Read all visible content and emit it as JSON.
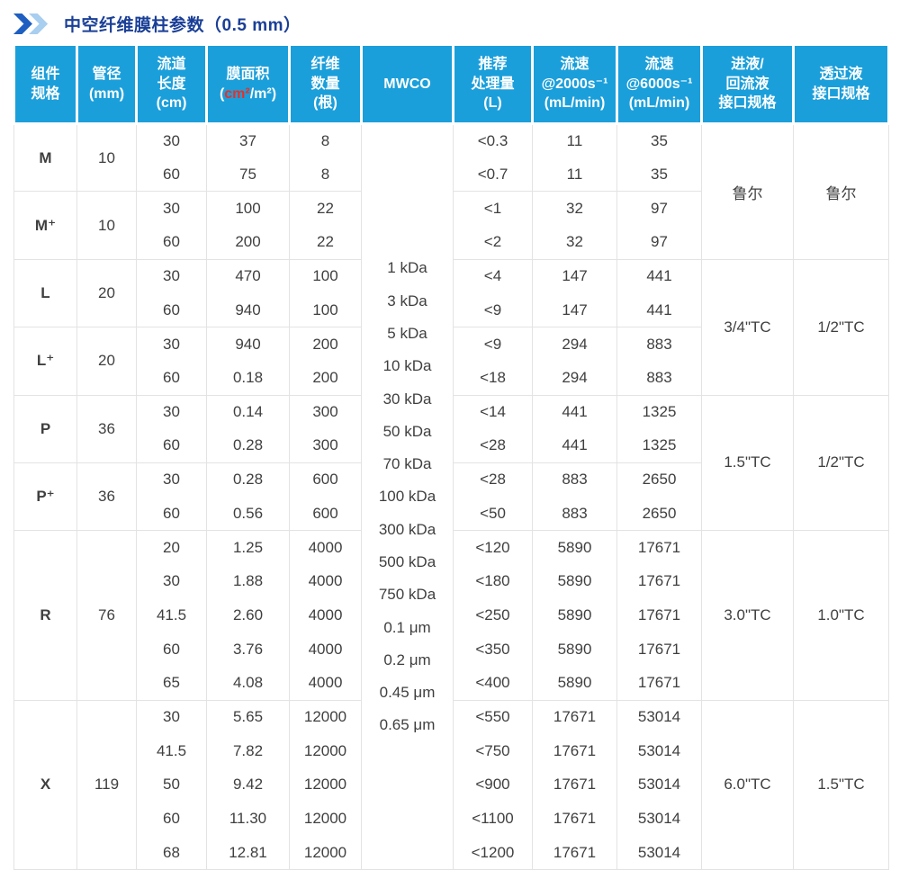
{
  "title": {
    "icon": "double-chevron-right",
    "text": "中空纤维膜柱参数（0.5 mm）"
  },
  "colors": {
    "header_bg": "#1b9fdb",
    "component_blue": "#1aa0e3",
    "highlight_red": "#e60012",
    "title_blue": "#1a3f97",
    "chevron_dark": "#1e5fc1",
    "chevron_light": "#a8cef0"
  },
  "table": {
    "headers": [
      "组件\n规格",
      "管径\n(mm)",
      "流道\n长度\n(cm)",
      {
        "title": "膜面积",
        "unit_pre": "(",
        "unit_red": "cm²",
        "unit_post": "/m²)"
      },
      "纤维\n数量\n(根)",
      "MWCO",
      "推荐\n处理量\n(L)",
      "流速\n@2000s⁻¹\n(mL/min)",
      "流速\n@6000s⁻¹\n(mL/min)",
      "进液/\n回流液\n接口规格",
      "透过液\n接口规格"
    ],
    "mwco": {
      "values": [
        "1 kDa",
        "3 kDa",
        "5 kDa",
        "10 kDa",
        "30 kDa",
        "50 kDa",
        "70 kDa",
        "100 kDa",
        "300 kDa",
        "500 kDa",
        "750 kDa",
        "0.1 μm",
        "0.2 μm",
        "0.45 μm",
        "0.65 μm"
      ]
    },
    "groups": [
      {
        "component": "M",
        "diameter": "10",
        "rows": [
          {
            "length": "30",
            "area": "37",
            "area_red": true,
            "fibers": "8",
            "volume": "<0.3",
            "flow2000": "11",
            "flow6000": "35"
          },
          {
            "length": "60",
            "area": "75",
            "area_red": true,
            "fibers": "8",
            "volume": "<0.7",
            "flow2000": "11",
            "flow6000": "35"
          }
        ]
      },
      {
        "component": "M⁺",
        "diameter": "10",
        "rows": [
          {
            "length": "30",
            "area": "100",
            "area_red": true,
            "fibers": "22",
            "volume": "<1",
            "flow2000": "32",
            "flow6000": "97"
          },
          {
            "length": "60",
            "area": "200",
            "area_red": true,
            "fibers": "22",
            "volume": "<2",
            "flow2000": "32",
            "flow6000": "97"
          }
        ]
      },
      {
        "component": "L",
        "diameter": "20",
        "rows": [
          {
            "length": "30",
            "area": "470",
            "area_red": true,
            "fibers": "100",
            "volume": "<4",
            "flow2000": "147",
            "flow6000": "441"
          },
          {
            "length": "60",
            "area": "940",
            "area_red": true,
            "fibers": "100",
            "volume": "<9",
            "flow2000": "147",
            "flow6000": "441"
          }
        ]
      },
      {
        "component": "L⁺",
        "diameter": "20",
        "rows": [
          {
            "length": "30",
            "area": "940",
            "area_red": true,
            "fibers": "200",
            "volume": "<9",
            "flow2000": "294",
            "flow6000": "883"
          },
          {
            "length": "60",
            "area": "0.18",
            "area_red": false,
            "fibers": "200",
            "volume": "<18",
            "flow2000": "294",
            "flow6000": "883"
          }
        ]
      },
      {
        "component": "P",
        "diameter": "36",
        "rows": [
          {
            "length": "30",
            "area": "0.14",
            "area_red": false,
            "fibers": "300",
            "volume": "<14",
            "flow2000": "441",
            "flow6000": "1325"
          },
          {
            "length": "60",
            "area": "0.28",
            "area_red": false,
            "fibers": "300",
            "volume": "<28",
            "flow2000": "441",
            "flow6000": "1325"
          }
        ]
      },
      {
        "component": "P⁺",
        "diameter": "36",
        "rows": [
          {
            "length": "30",
            "area": "0.28",
            "area_red": false,
            "fibers": "600",
            "volume": "<28",
            "flow2000": "883",
            "flow6000": "2650"
          },
          {
            "length": "60",
            "area": "0.56",
            "area_red": false,
            "fibers": "600",
            "volume": "<50",
            "flow2000": "883",
            "flow6000": "2650"
          }
        ]
      },
      {
        "component": "R",
        "diameter": "76",
        "rows": [
          {
            "length": "20",
            "area": "1.25",
            "area_red": false,
            "fibers": "4000",
            "volume": "<120",
            "flow2000": "5890",
            "flow6000": "17671"
          },
          {
            "length": "30",
            "area": "1.88",
            "area_red": false,
            "fibers": "4000",
            "volume": "<180",
            "flow2000": "5890",
            "flow6000": "17671"
          },
          {
            "length": "41.5",
            "area": "2.60",
            "area_red": false,
            "fibers": "4000",
            "volume": "<250",
            "flow2000": "5890",
            "flow6000": "17671"
          },
          {
            "length": "60",
            "area": "3.76",
            "area_red": false,
            "fibers": "4000",
            "volume": "<350",
            "flow2000": "5890",
            "flow6000": "17671"
          },
          {
            "length": "65",
            "area": "4.08",
            "area_red": false,
            "fibers": "4000",
            "volume": "<400",
            "flow2000": "5890",
            "flow6000": "17671"
          }
        ]
      },
      {
        "component": "X",
        "diameter": "119",
        "rows": [
          {
            "length": "30",
            "area": "5.65",
            "area_red": false,
            "fibers": "12000",
            "volume": "<550",
            "flow2000": "17671",
            "flow6000": "53014"
          },
          {
            "length": "41.5",
            "area": "7.82",
            "area_red": false,
            "fibers": "12000",
            "volume": "<750",
            "flow2000": "17671",
            "flow6000": "53014"
          },
          {
            "length": "50",
            "area": "9.42",
            "area_red": false,
            "fibers": "12000",
            "volume": "<900",
            "flow2000": "17671",
            "flow6000": "53014"
          },
          {
            "length": "60",
            "area": "11.30",
            "area_red": false,
            "fibers": "12000",
            "volume": "<1100",
            "flow2000": "17671",
            "flow6000": "53014"
          },
          {
            "length": "68",
            "area": "12.81",
            "area_red": false,
            "fibers": "12000",
            "volume": "<1200",
            "flow2000": "17671",
            "flow6000": "53014"
          }
        ]
      }
    ],
    "interfaces": [
      {
        "groups": [
          0,
          1
        ],
        "inlet": "鲁尔",
        "permeate": "鲁尔"
      },
      {
        "groups": [
          2,
          3
        ],
        "inlet": "3/4\"TC",
        "permeate": "1/2\"TC"
      },
      {
        "groups": [
          4,
          5
        ],
        "inlet": "1.5\"TC",
        "permeate": "1/2\"TC"
      },
      {
        "groups": [
          6
        ],
        "inlet": "3.0\"TC",
        "permeate": "1.0\"TC"
      },
      {
        "groups": [
          7
        ],
        "inlet": "6.0\"TC",
        "permeate": "1.5\"TC"
      }
    ]
  }
}
